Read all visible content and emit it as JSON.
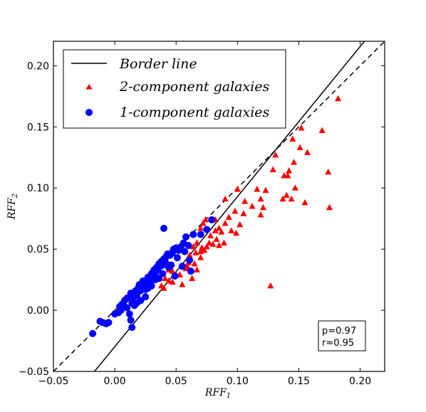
{
  "chart_data": {
    "type": "scatter",
    "xlabel": "RFF",
    "xlabel_sub": "1",
    "ylabel": "RFF",
    "ylabel_sub": "2",
    "xlim": [
      -0.05,
      0.22
    ],
    "ylim": [
      -0.05,
      0.22
    ],
    "x_ticks": [
      -0.05,
      0.0,
      0.05,
      0.1,
      0.15,
      0.2
    ],
    "x_tick_labels": [
      "−0.05",
      "0.00",
      "0.05",
      "0.10",
      "0.15",
      "0.20"
    ],
    "y_ticks": [
      -0.05,
      0.0,
      0.05,
      0.1,
      0.15,
      0.2
    ],
    "y_tick_labels": [
      "−0.05",
      "0.00",
      "0.05",
      "0.10",
      "0.15",
      "0.20"
    ],
    "grid": false,
    "legend_position": "top-left",
    "lines": [
      {
        "name": "Border line",
        "style": "solid",
        "color": "#000000",
        "points": [
          [
            -0.0165,
            -0.05
          ],
          [
            0.2035,
            0.22
          ]
        ]
      },
      {
        "name": "",
        "style": "dashed",
        "color": "#000000",
        "points": [
          [
            -0.05,
            -0.05
          ],
          [
            0.22,
            0.22
          ]
        ]
      }
    ],
    "series": [
      {
        "name": "2-component galaxies",
        "marker": "triangle",
        "color": "#ff0000",
        "points": [
          [
            0.182,
            0.173
          ],
          [
            0.152,
            0.149
          ],
          [
            0.169,
            0.147
          ],
          [
            0.175,
            0.084
          ],
          [
            0.174,
            0.113
          ],
          [
            0.157,
            0.129
          ],
          [
            0.151,
            0.133
          ],
          [
            0.145,
            0.14
          ],
          [
            0.141,
            0.11
          ],
          [
            0.138,
            0.11
          ],
          [
            0.131,
            0.127
          ],
          [
            0.129,
            0.115
          ],
          [
            0.146,
            0.121
          ],
          [
            0.142,
            0.114
          ],
          [
            0.147,
            0.1
          ],
          [
            0.14,
            0.094
          ],
          [
            0.137,
            0.091
          ],
          [
            0.144,
            0.091
          ],
          [
            0.155,
            0.088
          ],
          [
            0.127,
            0.02
          ],
          [
            0.123,
            0.098
          ],
          [
            0.119,
            0.091
          ],
          [
            0.116,
            0.099
          ],
          [
            0.121,
            0.084
          ],
          [
            0.112,
            0.085
          ],
          [
            0.119,
            0.078
          ],
          [
            0.106,
            0.089
          ],
          [
            0.1,
            0.099
          ],
          [
            0.105,
            0.079
          ],
          [
            0.098,
            0.081
          ],
          [
            0.09,
            0.091
          ],
          [
            0.093,
            0.076
          ],
          [
            0.09,
            0.071
          ],
          [
            0.087,
            0.064
          ],
          [
            0.095,
            0.065
          ],
          [
            0.099,
            0.063
          ],
          [
            0.102,
            0.07
          ],
          [
            0.082,
            0.074
          ],
          [
            0.085,
            0.067
          ],
          [
            0.083,
            0.058
          ],
          [
            0.089,
            0.055
          ],
          [
            0.082,
            0.065
          ],
          [
            0.078,
            0.061
          ],
          [
            0.074,
            0.074
          ],
          [
            0.072,
            0.071
          ],
          [
            0.07,
            0.067
          ],
          [
            0.085,
            0.053
          ],
          [
            0.08,
            0.054
          ],
          [
            0.077,
            0.055
          ],
          [
            0.075,
            0.052
          ],
          [
            0.073,
            0.049
          ],
          [
            0.071,
            0.051
          ],
          [
            0.07,
            0.048
          ],
          [
            0.067,
            0.055
          ],
          [
            0.064,
            0.052
          ],
          [
            0.07,
            0.043
          ],
          [
            0.066,
            0.047
          ],
          [
            0.065,
            0.038
          ],
          [
            0.06,
            0.039
          ],
          [
            0.061,
            0.045
          ],
          [
            0.063,
            0.026
          ],
          [
            0.058,
            0.034
          ],
          [
            0.053,
            0.029
          ],
          [
            0.055,
            0.021
          ],
          [
            0.05,
            0.029
          ],
          [
            0.047,
            0.023
          ],
          [
            0.047,
            0.032
          ],
          [
            0.044,
            0.033
          ],
          [
            0.046,
            0.049
          ],
          [
            0.043,
            0.039
          ],
          [
            0.041,
            0.044
          ],
          [
            0.041,
            0.026
          ],
          [
            0.04,
            0.018
          ],
          [
            0.038,
            0.02
          ],
          [
            0.044,
            0.024
          ],
          [
            0.067,
            0.033
          ],
          [
            0.059,
            0.036
          ]
        ]
      },
      {
        "name": "1-component galaxies",
        "marker": "circle",
        "color": "#0000ff",
        "points": [
          [
            -0.018,
            -0.019
          ],
          [
            -0.01,
            -0.01
          ],
          [
            -0.012,
            -0.009
          ],
          [
            -0.007,
            -0.011
          ],
          [
            -0.005,
            -0.01
          ],
          [
            0.0,
            -0.003
          ],
          [
            0.003,
            -0.002
          ],
          [
            0.004,
            0.003
          ],
          [
            0.006,
            0.005
          ],
          [
            0.008,
            0.003
          ],
          [
            0.01,
            0.002
          ],
          [
            0.012,
            -0.003
          ],
          [
            0.013,
            -0.008
          ],
          [
            0.014,
            -0.014
          ],
          [
            0.01,
            0.01
          ],
          [
            0.013,
            0.014
          ],
          [
            0.015,
            0.011
          ],
          [
            0.016,
            0.014
          ],
          [
            0.017,
            0.016
          ],
          [
            0.018,
            0.012
          ],
          [
            0.019,
            0.018
          ],
          [
            0.02,
            0.021
          ],
          [
            0.021,
            0.016
          ],
          [
            0.022,
            0.019
          ],
          [
            0.023,
            0.024
          ],
          [
            0.024,
            0.022
          ],
          [
            0.025,
            0.017
          ],
          [
            0.026,
            0.022
          ],
          [
            0.027,
            0.027
          ],
          [
            0.028,
            0.023
          ],
          [
            0.029,
            0.025
          ],
          [
            0.03,
            0.03
          ],
          [
            0.031,
            0.028
          ],
          [
            0.032,
            0.033
          ],
          [
            0.033,
            0.031
          ],
          [
            0.034,
            0.035
          ],
          [
            0.035,
            0.033
          ],
          [
            0.036,
            0.038
          ],
          [
            0.037,
            0.036
          ],
          [
            0.038,
            0.04
          ],
          [
            0.039,
            0.037
          ],
          [
            0.04,
            0.042
          ],
          [
            0.041,
            0.04
          ],
          [
            0.042,
            0.044
          ],
          [
            0.043,
            0.046
          ],
          [
            0.045,
            0.045
          ],
          [
            0.047,
            0.047
          ],
          [
            0.048,
            0.05
          ],
          [
            0.05,
            0.051
          ],
          [
            0.052,
            0.049
          ],
          [
            0.054,
            0.052
          ],
          [
            0.056,
            0.055
          ],
          [
            0.058,
            0.06
          ],
          [
            0.06,
            0.053
          ],
          [
            0.061,
            0.041
          ],
          [
            0.055,
            0.036
          ],
          [
            0.062,
            0.032
          ],
          [
            0.049,
            0.028
          ],
          [
            0.04,
            0.067
          ],
          [
            0.07,
            0.062
          ],
          [
            0.075,
            0.066
          ],
          [
            0.079,
            0.074
          ],
          [
            0.064,
            0.062
          ],
          [
            0.046,
            0.037
          ],
          [
            0.039,
            0.03
          ],
          [
            0.033,
            0.028
          ],
          [
            0.027,
            0.018
          ],
          [
            0.025,
            0.011
          ],
          [
            0.021,
            0.008
          ],
          [
            0.018,
            0.006
          ],
          [
            0.016,
            0.004
          ],
          [
            0.014,
            0.006
          ],
          [
            0.005,
            0.0
          ],
          [
            0.008,
            0.008
          ],
          [
            0.03,
            0.02
          ],
          [
            0.036,
            0.026
          ],
          [
            0.044,
            0.035
          ],
          [
            0.051,
            0.043
          ],
          [
            0.057,
            0.048
          ],
          [
            0.033,
            0.025
          ]
        ]
      }
    ],
    "legend": [
      {
        "label": "Border line",
        "marker": "line"
      },
      {
        "label": "2-component galaxies",
        "marker": "triangle"
      },
      {
        "label": "1-component galaxies",
        "marker": "circle"
      }
    ],
    "stats": {
      "line1": "p=0.97",
      "line2": "r=0.95"
    }
  }
}
